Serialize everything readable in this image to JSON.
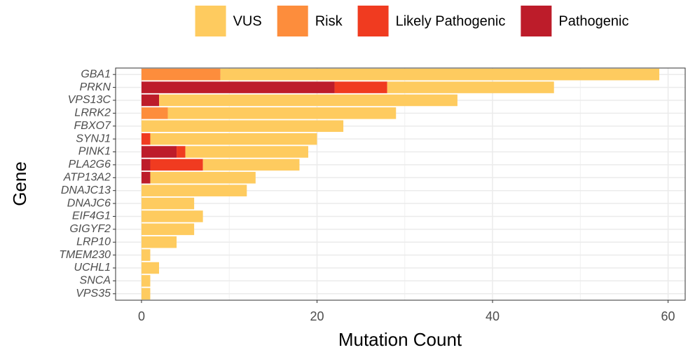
{
  "chart_data": {
    "type": "stacked_barh",
    "x_label": "Mutation Count",
    "y_label": "Gene",
    "categories": [
      "GBA1",
      "PRKN",
      "VPS13C",
      "LRRK2",
      "FBXO7",
      "SYNJ1",
      "PINK1",
      "PLA2G6",
      "ATP13A2",
      "DNAJC13",
      "DNAJC6",
      "EIF4G1",
      "GIGYF2",
      "LRP10",
      "TMEM230",
      "UCHL1",
      "SNCA",
      "VPS35"
    ],
    "series": [
      {
        "name": "VUS",
        "color": "#fecb5f",
        "values": [
          50,
          19,
          34,
          26,
          23,
          19,
          14,
          11,
          12,
          12,
          6,
          7,
          6,
          4,
          1,
          2,
          1,
          1
        ]
      },
      {
        "name": "Risk",
        "color": "#fd8d3c",
        "values": [
          9,
          0,
          0,
          3,
          0,
          0,
          0,
          0,
          0,
          0,
          0,
          0,
          0,
          0,
          0,
          0,
          0,
          0
        ]
      },
      {
        "name": "Likely Pathogenic",
        "color": "#f03b20",
        "values": [
          0,
          6,
          0,
          0,
          0,
          1,
          1,
          6,
          0,
          0,
          0,
          0,
          0,
          0,
          0,
          0,
          0,
          0
        ]
      },
      {
        "name": "Pathogenic",
        "color": "#bd1c2a",
        "values": [
          0,
          22,
          2,
          0,
          0,
          0,
          4,
          1,
          1,
          0,
          0,
          0,
          0,
          0,
          0,
          0,
          0,
          0
        ]
      }
    ],
    "xlim": [
      -2.95,
      61.95
    ],
    "xticks": [
      0,
      20,
      40,
      60
    ],
    "x_minor_gridlines": [
      10,
      30,
      50
    ],
    "grid": true,
    "legend": "top"
  }
}
